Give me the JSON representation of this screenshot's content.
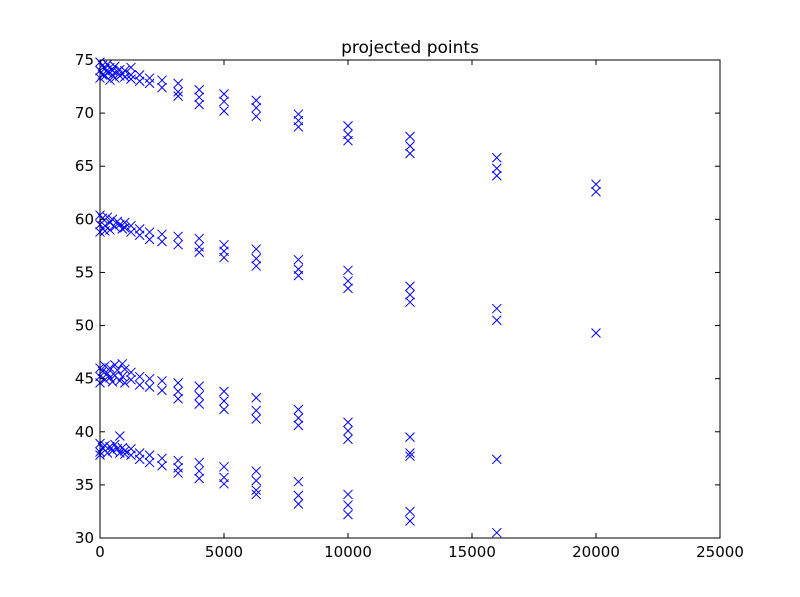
{
  "chart_data": {
    "type": "scatter",
    "title": "projected points",
    "xlabel": "",
    "ylabel": "",
    "xlim": [
      0,
      25000
    ],
    "ylim": [
      30,
      75
    ],
    "xticks": [
      "0",
      "5000",
      "10000",
      "15000",
      "20000",
      "25000"
    ],
    "yticks": [
      "30",
      "35",
      "40",
      "45",
      "50",
      "55",
      "60",
      "65",
      "70",
      "75"
    ],
    "grid": false,
    "marker": "x",
    "marker_color": "#0000ff",
    "series": [
      {
        "points": [
          [
            0,
            74.8
          ],
          [
            0,
            74.0
          ],
          [
            0,
            73.3
          ],
          [
            100,
            74.5
          ],
          [
            100,
            73.6
          ],
          [
            200,
            74.2
          ],
          [
            200,
            73.5
          ],
          [
            300,
            74.6
          ],
          [
            300,
            73.8
          ],
          [
            400,
            74.3
          ],
          [
            400,
            73.1
          ],
          [
            500,
            74.0
          ],
          [
            500,
            73.6
          ],
          [
            600,
            74.4
          ],
          [
            600,
            73.3
          ],
          [
            700,
            73.9
          ],
          [
            800,
            74.1
          ],
          [
            800,
            73.5
          ],
          [
            900,
            73.7
          ],
          [
            1000,
            74.0
          ],
          [
            1000,
            73.4
          ],
          [
            1250,
            74.3
          ],
          [
            1250,
            73.6
          ],
          [
            1250,
            73.2
          ],
          [
            1600,
            73.6
          ],
          [
            1600,
            73.0
          ],
          [
            2000,
            73.3
          ],
          [
            2000,
            72.8
          ],
          [
            2500,
            73.1
          ],
          [
            2500,
            72.4
          ],
          [
            3150,
            72.8
          ],
          [
            3150,
            72.0
          ],
          [
            3150,
            71.6
          ],
          [
            4000,
            72.2
          ],
          [
            4000,
            71.5
          ],
          [
            4000,
            70.8
          ],
          [
            5000,
            71.8
          ],
          [
            5000,
            71.1
          ],
          [
            5000,
            70.2
          ],
          [
            6300,
            71.2
          ],
          [
            6300,
            70.5
          ],
          [
            6300,
            69.7
          ],
          [
            8000,
            69.9
          ],
          [
            8000,
            69.3
          ],
          [
            8000,
            68.7
          ],
          [
            10000,
            68.8
          ],
          [
            10000,
            68.0
          ],
          [
            10000,
            67.4
          ],
          [
            12500,
            67.8
          ],
          [
            12500,
            66.9
          ],
          [
            12500,
            66.2
          ],
          [
            16000,
            65.8
          ],
          [
            16000,
            64.8
          ],
          [
            16000,
            64.1
          ],
          [
            20000,
            63.3
          ],
          [
            20000,
            62.6
          ]
        ]
      },
      {
        "points": [
          [
            0,
            60.4
          ],
          [
            0,
            59.5
          ],
          [
            0,
            58.8
          ],
          [
            100,
            60.1
          ],
          [
            200,
            59.4
          ],
          [
            200,
            58.9
          ],
          [
            300,
            60.2
          ],
          [
            400,
            59.7
          ],
          [
            400,
            59.0
          ],
          [
            500,
            60.0
          ],
          [
            600,
            59.3
          ],
          [
            700,
            59.8
          ],
          [
            800,
            59.5
          ],
          [
            900,
            59.1
          ],
          [
            1000,
            59.7
          ],
          [
            1000,
            59.2
          ],
          [
            1250,
            59.4
          ],
          [
            1250,
            58.8
          ],
          [
            1600,
            59.1
          ],
          [
            1600,
            58.5
          ],
          [
            2000,
            58.8
          ],
          [
            2000,
            58.1
          ],
          [
            2500,
            58.6
          ],
          [
            2500,
            57.9
          ],
          [
            3150,
            58.4
          ],
          [
            3150,
            57.6
          ],
          [
            4000,
            58.2
          ],
          [
            4000,
            57.4
          ],
          [
            4000,
            56.9
          ],
          [
            5000,
            57.6
          ],
          [
            5000,
            57.0
          ],
          [
            5000,
            56.4
          ],
          [
            6300,
            57.2
          ],
          [
            6300,
            56.3
          ],
          [
            6300,
            55.6
          ],
          [
            8000,
            56.2
          ],
          [
            8000,
            55.3
          ],
          [
            8000,
            54.7
          ],
          [
            10000,
            55.2
          ],
          [
            10000,
            54.2
          ],
          [
            10000,
            53.5
          ],
          [
            12500,
            53.7
          ],
          [
            12500,
            52.9
          ],
          [
            12500,
            52.2
          ],
          [
            16000,
            51.6
          ],
          [
            16000,
            50.5
          ],
          [
            20000,
            49.3
          ]
        ]
      },
      {
        "points": [
          [
            0,
            46.0
          ],
          [
            0,
            45.2
          ],
          [
            0,
            44.6
          ],
          [
            100,
            45.7
          ],
          [
            200,
            46.2
          ],
          [
            200,
            44.9
          ],
          [
            300,
            45.5
          ],
          [
            400,
            46.0
          ],
          [
            400,
            45.1
          ],
          [
            500,
            44.7
          ],
          [
            600,
            46.3
          ],
          [
            600,
            45.3
          ],
          [
            700,
            45.8
          ],
          [
            800,
            44.8
          ],
          [
            900,
            46.4
          ],
          [
            900,
            45.2
          ],
          [
            1000,
            45.9
          ],
          [
            1000,
            44.6
          ],
          [
            1250,
            45.6
          ],
          [
            1250,
            44.9
          ],
          [
            1600,
            45.2
          ],
          [
            1600,
            44.4
          ],
          [
            2000,
            45.0
          ],
          [
            2000,
            44.2
          ],
          [
            2500,
            44.8
          ],
          [
            2500,
            43.9
          ],
          [
            3150,
            44.6
          ],
          [
            3150,
            43.8
          ],
          [
            3150,
            43.1
          ],
          [
            4000,
            44.3
          ],
          [
            4000,
            43.4
          ],
          [
            4000,
            42.6
          ],
          [
            5000,
            43.8
          ],
          [
            5000,
            42.9
          ],
          [
            5000,
            42.1
          ],
          [
            6300,
            43.2
          ],
          [
            6300,
            42.0
          ],
          [
            6300,
            41.2
          ],
          [
            8000,
            42.1
          ],
          [
            8000,
            41.3
          ],
          [
            8000,
            40.6
          ],
          [
            10000,
            40.9
          ],
          [
            10000,
            40.1
          ],
          [
            10000,
            39.3
          ],
          [
            12500,
            39.5
          ],
          [
            12500,
            38.0
          ],
          [
            12500,
            37.7
          ],
          [
            16000,
            37.4
          ]
        ]
      },
      {
        "points": [
          [
            0,
            38.9
          ],
          [
            0,
            38.1
          ],
          [
            0,
            37.8
          ],
          [
            100,
            38.5
          ],
          [
            200,
            38.7
          ],
          [
            300,
            38.0
          ],
          [
            400,
            38.6
          ],
          [
            500,
            38.2
          ],
          [
            600,
            38.8
          ],
          [
            700,
            38.4
          ],
          [
            800,
            39.6
          ],
          [
            800,
            38.0
          ],
          [
            900,
            38.5
          ],
          [
            1000,
            38.2
          ],
          [
            1000,
            37.9
          ],
          [
            1250,
            38.4
          ],
          [
            1250,
            37.8
          ],
          [
            1600,
            38.0
          ],
          [
            1600,
            37.4
          ],
          [
            2000,
            37.8
          ],
          [
            2000,
            37.1
          ],
          [
            2500,
            37.5
          ],
          [
            2500,
            36.8
          ],
          [
            3150,
            37.3
          ],
          [
            3150,
            36.6
          ],
          [
            3150,
            36.1
          ],
          [
            4000,
            37.1
          ],
          [
            4000,
            36.3
          ],
          [
            4000,
            35.6
          ],
          [
            5000,
            36.7
          ],
          [
            5000,
            35.7
          ],
          [
            5000,
            35.1
          ],
          [
            6300,
            36.3
          ],
          [
            6300,
            35.4
          ],
          [
            6300,
            34.5
          ],
          [
            6300,
            34.1
          ],
          [
            8000,
            35.3
          ],
          [
            8000,
            34.0
          ],
          [
            8000,
            33.2
          ],
          [
            10000,
            34.1
          ],
          [
            10000,
            33.1
          ],
          [
            10000,
            32.2
          ],
          [
            12500,
            32.5
          ],
          [
            12500,
            31.6
          ],
          [
            16000,
            30.5
          ]
        ]
      }
    ]
  }
}
